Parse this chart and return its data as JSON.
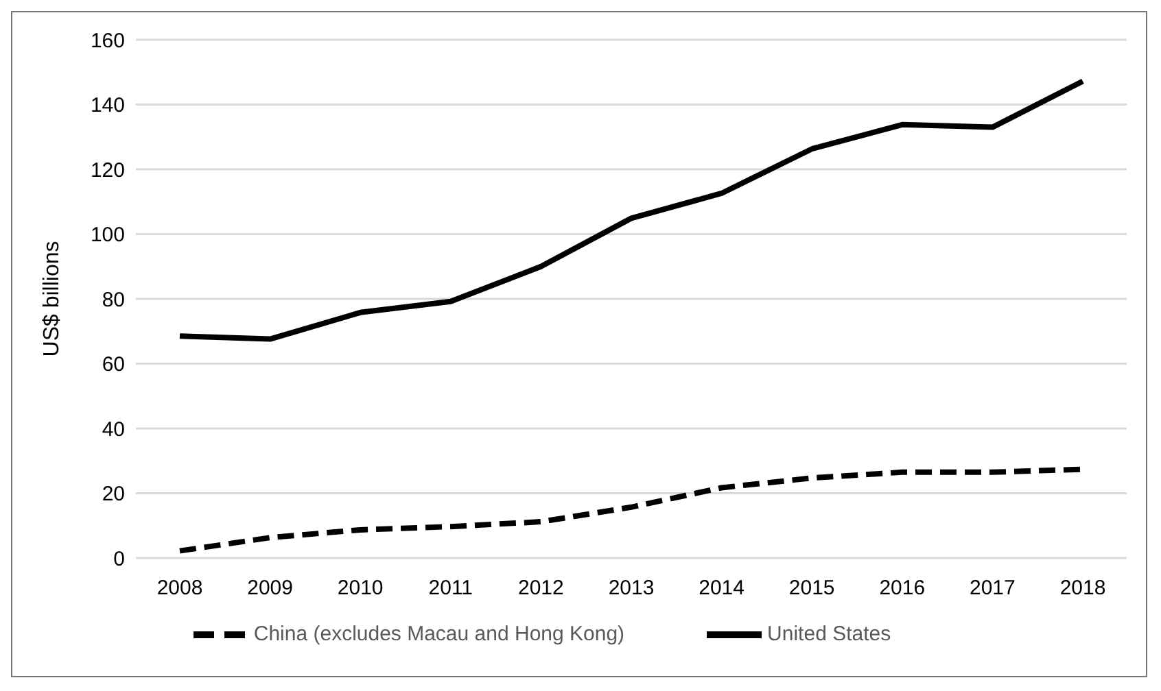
{
  "chart_data": {
    "type": "line",
    "ylabel": "US$ billions",
    "categories": [
      "2008",
      "2009",
      "2010",
      "2011",
      "2012",
      "2013",
      "2014",
      "2015",
      "2016",
      "2017",
      "2018"
    ],
    "series": [
      {
        "name": "China (excludes Macau and Hong Kong)",
        "color": "#000000",
        "line_style": "dashed",
        "values": [
          2.2,
          6.3,
          8.7,
          9.7,
          11.2,
          15.7,
          21.7,
          24.7,
          26.5,
          26.5,
          27.4
        ]
      },
      {
        "name": "United States",
        "color": "#000000",
        "line_style": "solid",
        "values": [
          68.5,
          67.6,
          75.8,
          79.2,
          90,
          104.9,
          112.6,
          126.3,
          133.8,
          133,
          147.2
        ]
      }
    ],
    "ylim": [
      0,
      160
    ],
    "yticks": [
      0,
      20,
      40,
      60,
      80,
      100,
      120,
      140,
      160
    ],
    "grid": "y",
    "legend": "bottom",
    "marker": "none"
  }
}
